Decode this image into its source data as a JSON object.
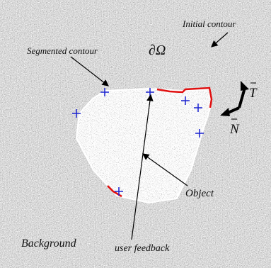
{
  "labels": {
    "initial_contour": "Initial contour",
    "domain_boundary": "∂Ω",
    "segmented_contour": "Segmented contour",
    "object": "Object",
    "background": "Background",
    "user_feedback": "user feedback",
    "tangent": "T",
    "normal": "N"
  }
}
